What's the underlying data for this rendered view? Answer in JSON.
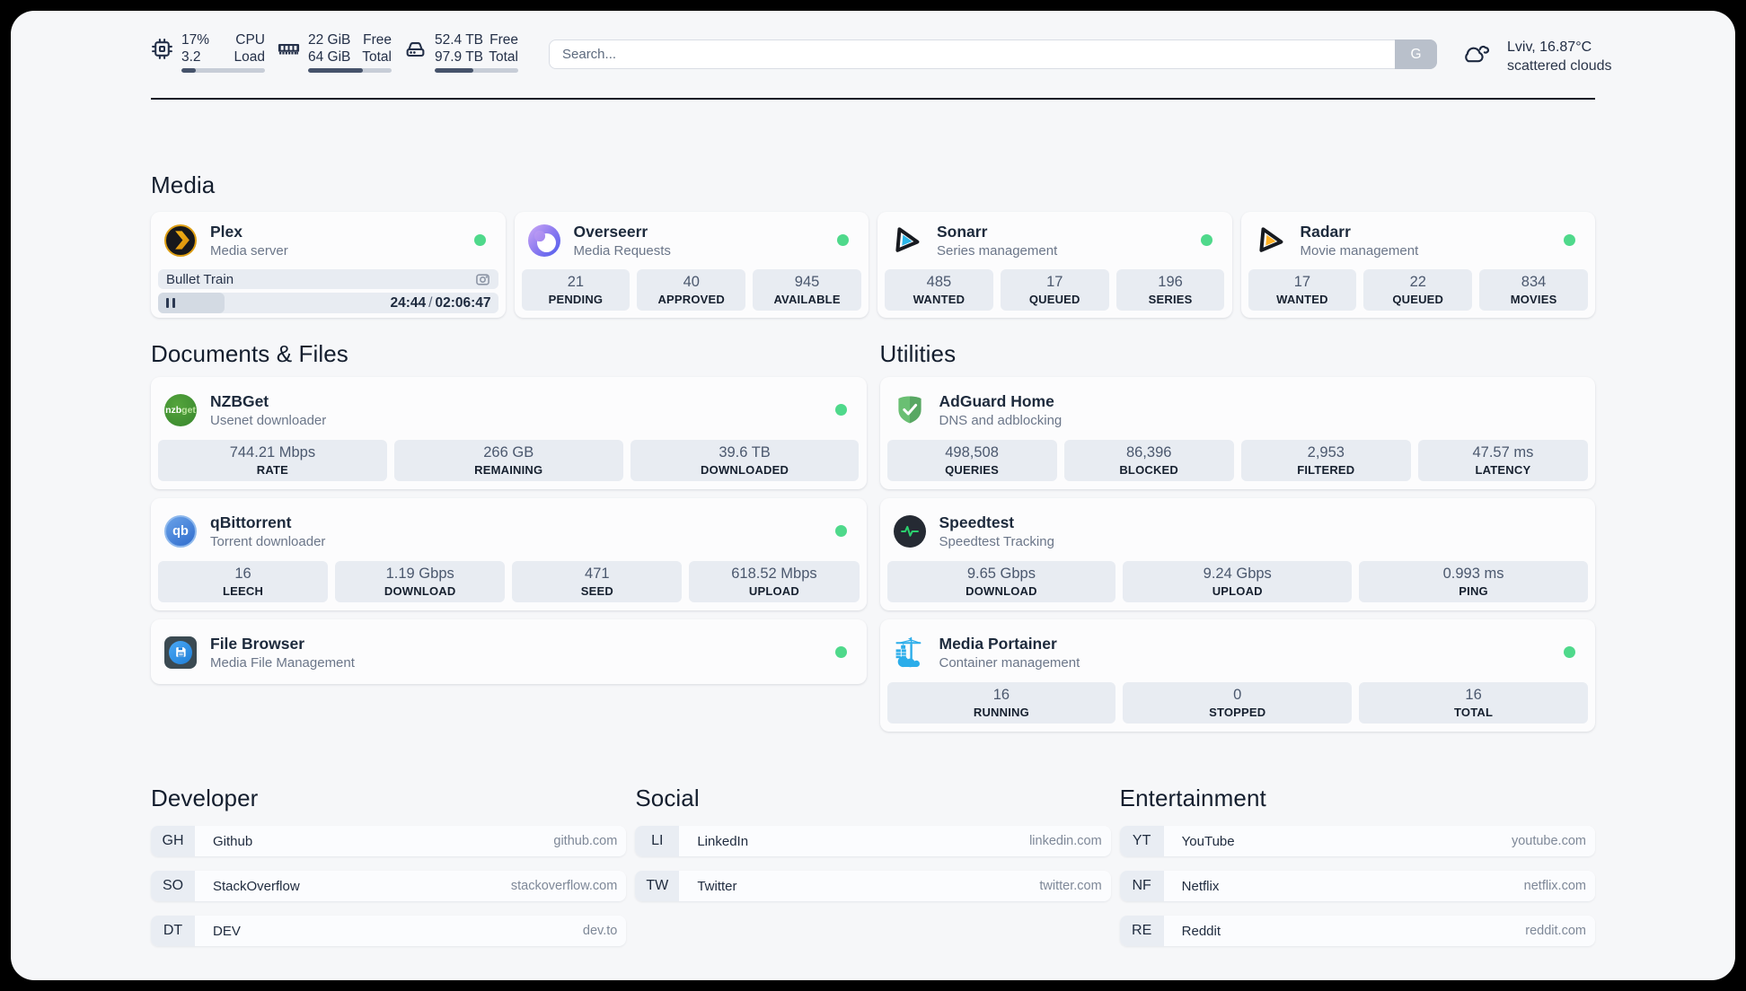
{
  "colors": {
    "status_online": "#4fd98b",
    "accent_text": "#1d2a3c",
    "page_background": "#f6f7f9",
    "tile_background": "#e8ecf2"
  },
  "topbar": {
    "resources": [
      {
        "icon": "cpu-icon",
        "values": [
          "17%",
          "3.2"
        ],
        "labels": [
          "CPU",
          "Load"
        ],
        "progress_pct": 17
      },
      {
        "icon": "memory-icon",
        "values": [
          "22 GiB",
          "64 GiB"
        ],
        "labels": [
          "Free",
          "Total"
        ],
        "progress_pct": 66
      },
      {
        "icon": "disk-icon",
        "values": [
          "52.4 TB",
          "97.9 TB"
        ],
        "labels": [
          "Free",
          "Total"
        ],
        "progress_pct": 46
      }
    ],
    "search": {
      "placeholder": "Search...",
      "provider_button": "G"
    },
    "weather": {
      "summary": "Lviv, 16.87°C",
      "condition": "scattered clouds"
    }
  },
  "sections": {
    "media": {
      "title": "Media",
      "cards": [
        {
          "name": "Plex",
          "description": "Media server",
          "online": true,
          "now_playing": {
            "title": "Bullet Train",
            "elapsed": "24:44",
            "duration": "02:06:47",
            "separator": "/",
            "progress_pct": 19.5,
            "state": "paused"
          }
        },
        {
          "name": "Overseerr",
          "description": "Media Requests",
          "online": true,
          "stats": [
            {
              "value": "21",
              "label": "PENDING"
            },
            {
              "value": "40",
              "label": "APPROVED"
            },
            {
              "value": "945",
              "label": "AVAILABLE"
            }
          ]
        },
        {
          "name": "Sonarr",
          "description": "Series management",
          "online": true,
          "stats": [
            {
              "value": "485",
              "label": "WANTED"
            },
            {
              "value": "17",
              "label": "QUEUED"
            },
            {
              "value": "196",
              "label": "SERIES"
            }
          ]
        },
        {
          "name": "Radarr",
          "description": "Movie management",
          "online": true,
          "stats": [
            {
              "value": "17",
              "label": "WANTED"
            },
            {
              "value": "22",
              "label": "QUEUED"
            },
            {
              "value": "834",
              "label": "MOVIES"
            }
          ]
        }
      ]
    },
    "documents": {
      "title": "Documents & Files",
      "cards": [
        {
          "name": "NZBGet",
          "description": "Usenet downloader",
          "online": true,
          "icon_text": {
            "primary": "nzb",
            "secondary": "get"
          },
          "stats": [
            {
              "value": "744.21 Mbps",
              "label": "RATE"
            },
            {
              "value": "266 GB",
              "label": "REMAINING"
            },
            {
              "value": "39.6 TB",
              "label": "DOWNLOADED"
            }
          ]
        },
        {
          "name": "qBittorrent",
          "description": "Torrent downloader",
          "online": true,
          "icon_text": "qb",
          "stats": [
            {
              "value": "16",
              "label": "LEECH"
            },
            {
              "value": "1.19 Gbps",
              "label": "DOWNLOAD"
            },
            {
              "value": "471",
              "label": "SEED"
            },
            {
              "value": "618.52 Mbps",
              "label": "UPLOAD"
            }
          ]
        },
        {
          "name": "File Browser",
          "description": "Media File Management",
          "online": true
        }
      ]
    },
    "utilities": {
      "title": "Utilities",
      "cards": [
        {
          "name": "AdGuard Home",
          "description": "DNS and adblocking",
          "stats": [
            {
              "value": "498,508",
              "label": "QUERIES"
            },
            {
              "value": "86,396",
              "label": "BLOCKED"
            },
            {
              "value": "2,953",
              "label": "FILTERED"
            },
            {
              "value": "47.57 ms",
              "label": "LATENCY"
            }
          ]
        },
        {
          "name": "Speedtest",
          "description": "Speedtest Tracking",
          "stats": [
            {
              "value": "9.65 Gbps",
              "label": "DOWNLOAD"
            },
            {
              "value": "9.24 Gbps",
              "label": "UPLOAD"
            },
            {
              "value": "0.993 ms",
              "label": "PING"
            }
          ]
        },
        {
          "name": "Media Portainer",
          "description": "Container management",
          "online": true,
          "stats": [
            {
              "value": "16",
              "label": "RUNNING"
            },
            {
              "value": "0",
              "label": "STOPPED"
            },
            {
              "value": "16",
              "label": "TOTAL"
            }
          ]
        }
      ]
    }
  },
  "bookmarks": {
    "groups": [
      {
        "title": "Developer",
        "links": [
          {
            "abbr": "GH",
            "name": "Github",
            "domain": "github.com"
          },
          {
            "abbr": "SO",
            "name": "StackOverflow",
            "domain": "stackoverflow.com"
          },
          {
            "abbr": "DT",
            "name": "DEV",
            "domain": "dev.to"
          }
        ]
      },
      {
        "title": "Social",
        "links": [
          {
            "abbr": "LI",
            "name": "LinkedIn",
            "domain": "linkedin.com"
          },
          {
            "abbr": "TW",
            "name": "Twitter",
            "domain": "twitter.com"
          }
        ]
      },
      {
        "title": "Entertainment",
        "links": [
          {
            "abbr": "YT",
            "name": "YouTube",
            "domain": "youtube.com"
          },
          {
            "abbr": "NF",
            "name": "Netflix",
            "domain": "netflix.com"
          },
          {
            "abbr": "RE",
            "name": "Reddit",
            "domain": "reddit.com"
          }
        ]
      }
    ]
  }
}
